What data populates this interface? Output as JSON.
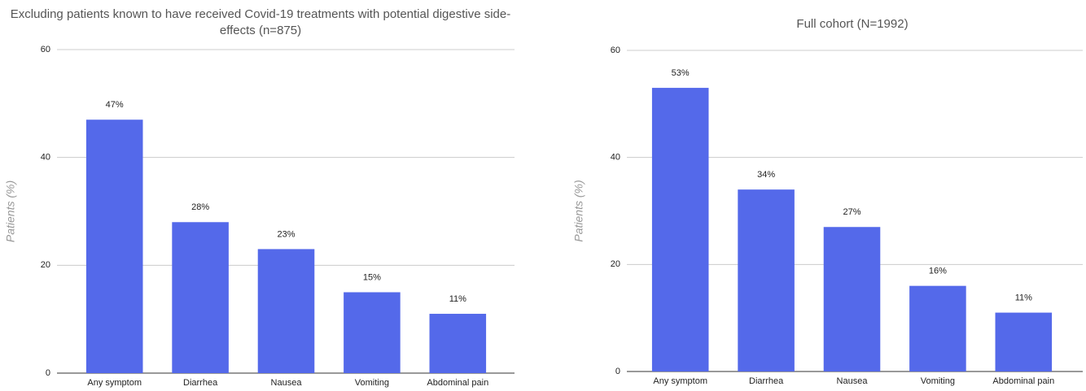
{
  "chart_data": [
    {
      "type": "bar",
      "title": "Excluding patients known to have received Covid-19 treatments with potential digestive side-effects (n=875)",
      "y_label": "Patients (%)",
      "categories": [
        "Any symptom",
        "Diarrhea",
        "Nausea",
        "Vomiting",
        "Abdominal pain"
      ],
      "values": [
        47,
        28,
        23,
        15,
        11
      ],
      "value_labels": [
        "47%",
        "28%",
        "23%",
        "15%",
        "11%"
      ],
      "color": "#5469ea",
      "ylim": [
        0,
        60
      ],
      "yticks": [
        0,
        20,
        40,
        60
      ],
      "grid": true
    },
    {
      "type": "bar",
      "title": "Full cohort (N=1992)",
      "y_label": "Patients (%)",
      "categories": [
        "Any symptom",
        "Diarrhea",
        "Nausea",
        "Vomiting",
        "Abdominal pain"
      ],
      "values": [
        53,
        34,
        27,
        16,
        11
      ],
      "value_labels": [
        "53%",
        "34%",
        "27%",
        "16%",
        "11%"
      ],
      "color": "#5469ea",
      "ylim": [
        0,
        60
      ],
      "yticks": [
        0,
        20,
        40,
        60
      ],
      "grid": true
    }
  ]
}
